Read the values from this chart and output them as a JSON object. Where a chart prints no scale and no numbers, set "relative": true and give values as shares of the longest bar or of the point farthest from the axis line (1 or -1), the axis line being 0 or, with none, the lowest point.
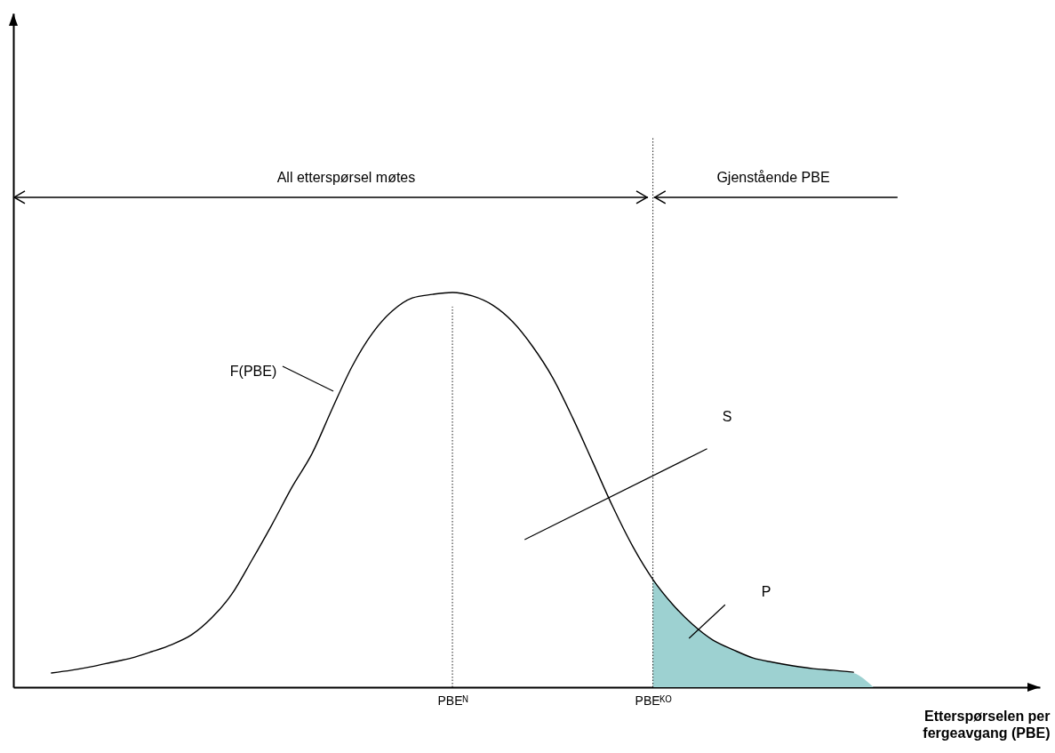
{
  "chart_data": {
    "type": "line",
    "relative": true,
    "xlabel": "Etterspørselen per fergeavgang (PBE)",
    "categories": [
      null,
      null,
      null,
      null,
      null,
      null,
      null,
      null,
      null,
      null,
      null,
      null,
      null,
      null,
      null,
      null,
      null,
      null,
      null,
      null,
      "PBEᴺ",
      null,
      null,
      null,
      null,
      null,
      null,
      null,
      null,
      null,
      "PBEᴷᴼ",
      null,
      null,
      null,
      null,
      null,
      null,
      null,
      null,
      null,
      null,
      null
    ],
    "series": [
      {
        "type": "line",
        "color": "#000000",
        "values": [
          0.036,
          0.043,
          0.052,
          0.063,
          0.074,
          0.09,
          0.108,
          0.133,
          0.176,
          0.236,
          0.322,
          0.412,
          0.507,
          0.592,
          0.705,
          0.813,
          0.896,
          0.953,
          0.986,
          0.995,
          1.0,
          0.991,
          0.968,
          0.926,
          0.863,
          0.784,
          0.682,
          0.57,
          0.457,
          0.356,
          0.273,
          0.209,
          0.158,
          0.119,
          0.095,
          0.074,
          0.063,
          0.054,
          0.047,
          0.043,
          0.038,
          null
        ]
      },
      {
        "type": "area",
        "color": "#9dd1d1",
        "values": [
          null,
          null,
          null,
          null,
          null,
          null,
          null,
          null,
          null,
          null,
          null,
          null,
          null,
          null,
          null,
          null,
          null,
          null,
          null,
          null,
          null,
          null,
          null,
          null,
          null,
          null,
          null,
          null,
          null,
          null,
          0.273,
          0.209,
          0.158,
          0.119,
          0.095,
          0.074,
          0.063,
          0.054,
          0.047,
          0.043,
          0.036,
          0.0
        ]
      }
    ],
    "ref_lines": [
      {
        "axis": "x",
        "value": "PBEᴺ",
        "line_style": "dotted"
      },
      {
        "axis": "x",
        "value": "PBEᴷᴼ",
        "line_style": "dotted"
      }
    ],
    "annotations": [
      "All etterspørsel møtes",
      "Gjenstående PBE",
      "F(PBE)",
      "S",
      "P"
    ],
    "data_labels": false
  }
}
